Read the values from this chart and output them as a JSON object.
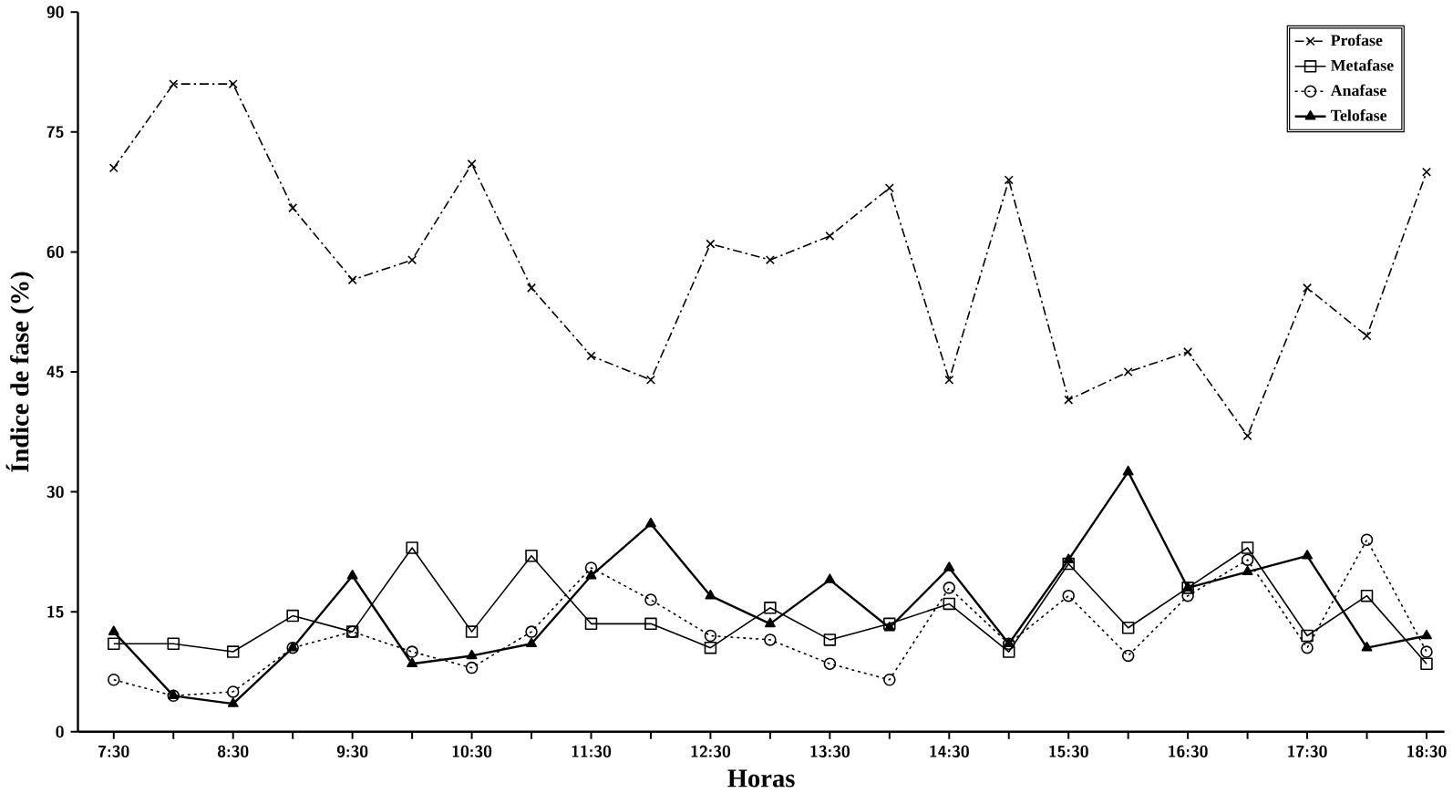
{
  "chart_data": {
    "type": "line",
    "xlabel": "Horas",
    "ylabel": "Índice de fase (%)",
    "categories": [
      "7:30",
      null,
      "8:30",
      null,
      "9:30",
      null,
      "10:30",
      null,
      "11:30",
      null,
      "12:30",
      null,
      "13:30",
      null,
      "14:30",
      null,
      "15:30",
      null,
      "16:30",
      null,
      "17:30",
      null,
      "18:30"
    ],
    "ylim": [
      0,
      90
    ],
    "yticks": [
      0,
      15,
      30,
      45,
      60,
      75,
      90
    ],
    "grid": false,
    "legend": "top right",
    "series": [
      {
        "name": "Profase",
        "color": "#000000",
        "marker": "cross",
        "line_style": "dashed",
        "values": [
          70.5,
          81,
          81,
          65.5,
          56.5,
          59,
          71,
          55.5,
          47,
          44,
          61,
          59,
          62,
          68,
          44,
          69,
          41.5,
          45,
          47.5,
          37,
          55.5,
          49.5,
          70
        ]
      },
      {
        "name": "Metafase",
        "color": "#000000",
        "marker": "square",
        "line_style": "solid",
        "values": [
          11,
          11,
          10,
          14.5,
          12.5,
          23,
          12.5,
          22,
          13.5,
          13.5,
          10.5,
          15.5,
          11.5,
          13.5,
          16,
          10,
          21,
          13,
          18,
          23,
          12,
          17,
          8.5
        ]
      },
      {
        "name": "Anafase",
        "color": "#000000",
        "marker": "circle",
        "line_style": "dotted",
        "values": [
          6.5,
          4.5,
          5,
          10.5,
          12.5,
          10,
          8,
          12.5,
          20.5,
          16.5,
          12,
          11.5,
          8.5,
          6.5,
          18,
          11,
          17,
          9.5,
          17,
          21.5,
          10.5,
          24,
          10
        ]
      },
      {
        "name": "Telofase",
        "color": "#000000",
        "marker": "triangle",
        "line_style": "solid",
        "values": [
          12.5,
          4.5,
          3.5,
          10.5,
          19.5,
          8.5,
          9.5,
          11,
          19.5,
          26,
          17,
          13.5,
          19,
          13,
          20.5,
          11,
          21.5,
          32.5,
          18,
          20,
          22,
          10.5,
          12
        ]
      }
    ]
  }
}
